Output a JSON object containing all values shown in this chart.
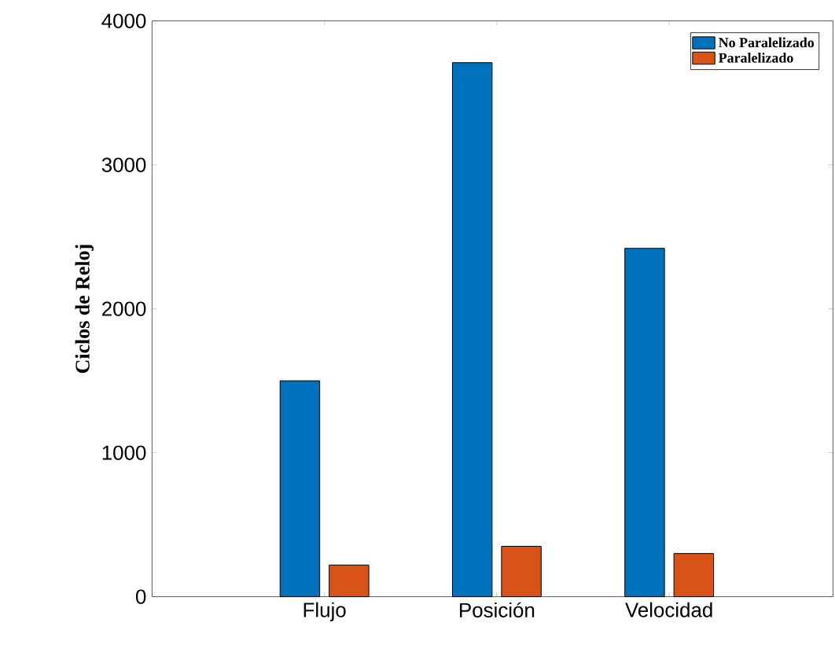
{
  "chart_data": {
    "type": "bar",
    "ylabel": "Ciclos de Reloj",
    "categories": [
      "Flujo",
      "Posición",
      "Velocidad"
    ],
    "series": [
      {
        "name": "No Paralelizado",
        "color": "#0072bd",
        "values": [
          1500,
          3710,
          2420
        ]
      },
      {
        "name": "Paralelizado",
        "color": "#d95319",
        "values": [
          220,
          350,
          300
        ]
      }
    ],
    "ylim": [
      0,
      4000
    ],
    "yticks": [
      0,
      1000,
      2000,
      3000,
      4000
    ],
    "grid": false,
    "legend": "top right"
  }
}
